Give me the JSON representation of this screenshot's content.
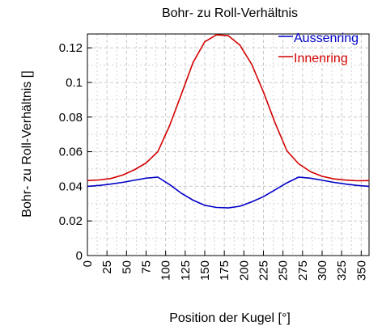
{
  "chart_data": {
    "type": "line",
    "title": "Bohr- zu Roll-Verhältnis",
    "xlabel": "Position der Kugel [°]",
    "ylabel": "Bohr- zu Roll-Verhältnis []",
    "xlim": [
      0,
      360
    ],
    "ylim": [
      0,
      0.128
    ],
    "x_ticks": [
      0,
      25,
      50,
      75,
      100,
      125,
      150,
      175,
      200,
      225,
      250,
      275,
      300,
      325,
      350
    ],
    "y_ticks": [
      0,
      0.02,
      0.04,
      0.06,
      0.08,
      0.1,
      0.12
    ],
    "y_tick_labels": [
      "0",
      "0.02",
      "0.04",
      "0.06",
      "0.08",
      "0.1",
      "0.12"
    ],
    "grid": true,
    "legend_position": "top-right",
    "x": [
      0,
      15,
      30,
      45,
      60,
      75,
      90,
      105,
      120,
      135,
      150,
      165,
      180,
      195,
      210,
      225,
      240,
      255,
      270,
      285,
      300,
      315,
      330,
      345,
      360
    ],
    "series": [
      {
        "name": "Aussenring",
        "color": "#0000c8",
        "values": [
          0.04,
          0.0405,
          0.0413,
          0.0423,
          0.0435,
          0.0447,
          0.0453,
          0.041,
          0.036,
          0.032,
          0.029,
          0.0278,
          0.0275,
          0.0285,
          0.031,
          0.034,
          0.038,
          0.042,
          0.0453,
          0.0447,
          0.0435,
          0.0423,
          0.0413,
          0.0405,
          0.04
        ]
      },
      {
        "name": "Innenring",
        "color": "#d40000",
        "values": [
          0.0433,
          0.0437,
          0.0445,
          0.0465,
          0.0495,
          0.0535,
          0.06,
          0.075,
          0.093,
          0.1115,
          0.1235,
          0.1275,
          0.127,
          0.1215,
          0.1105,
          0.0945,
          0.0765,
          0.0605,
          0.053,
          0.0485,
          0.0458,
          0.0443,
          0.0436,
          0.0432,
          0.0433
        ]
      }
    ]
  }
}
